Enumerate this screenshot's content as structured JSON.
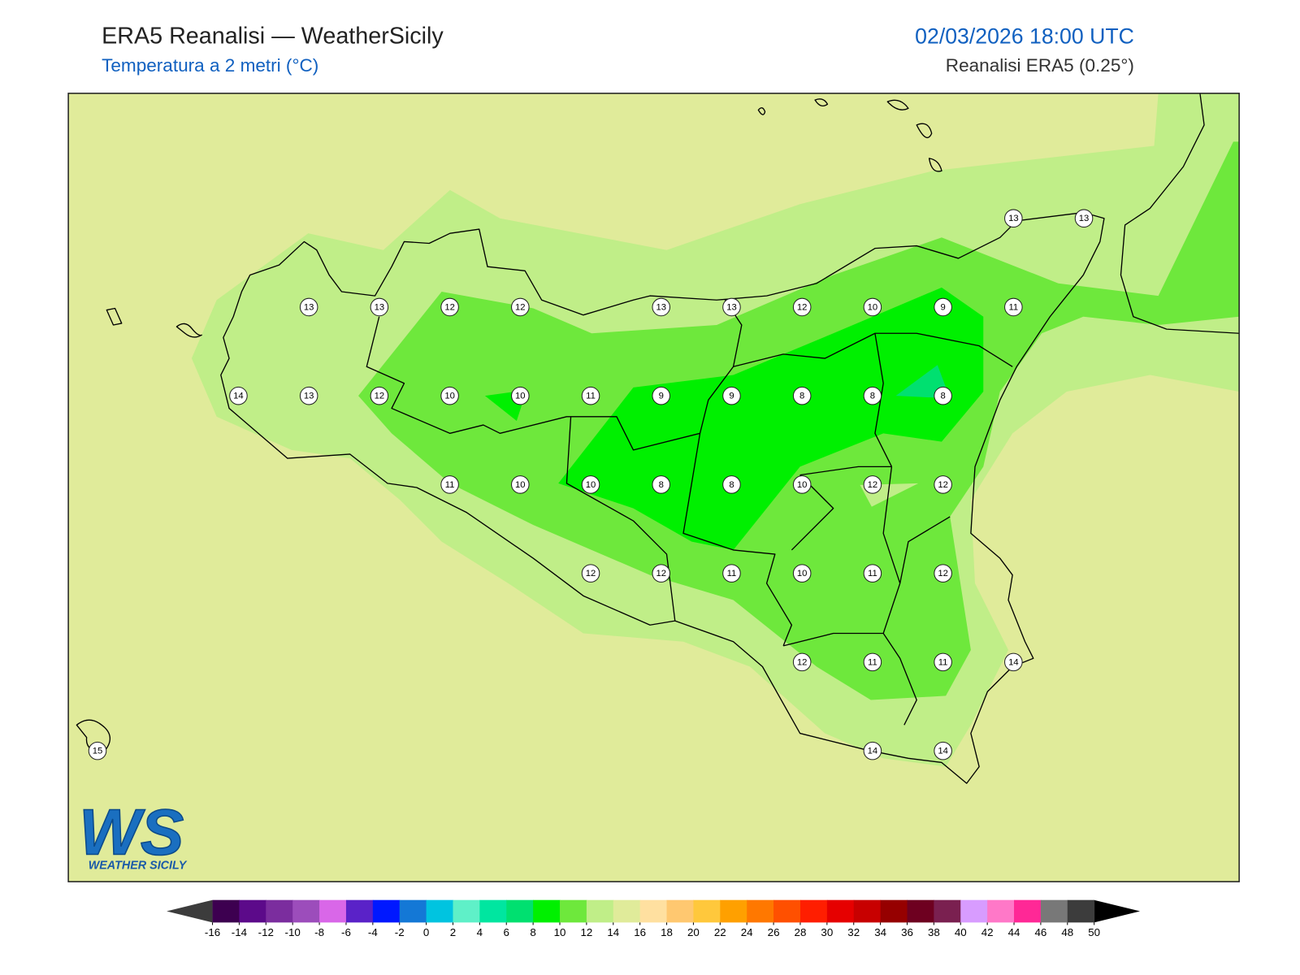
{
  "header": {
    "title": "ERA5 Reanalisi — WeatherSicily",
    "subtitle": "Temperatura a 2 metri (°C)",
    "datetime": "02/03/2026 18:00 UTC",
    "source": "Reanalisi ERA5 (0.25°)"
  },
  "grid": {
    "rows": [
      [
        null,
        null,
        null,
        null,
        null,
        null,
        null,
        null,
        null,
        null,
        null,
        null,
        null,
        13,
        13
      ],
      [
        null,
        null,
        null,
        13,
        13,
        12,
        12,
        null,
        13,
        13,
        12,
        10,
        9,
        11,
        null
      ],
      [
        null,
        null,
        14,
        13,
        12,
        10,
        10,
        11,
        9,
        9,
        8,
        8,
        8,
        null,
        null
      ],
      [
        null,
        null,
        null,
        null,
        null,
        11,
        10,
        10,
        8,
        8,
        10,
        12,
        12,
        null,
        null
      ],
      [
        null,
        null,
        null,
        null,
        null,
        null,
        null,
        12,
        12,
        11,
        10,
        11,
        12,
        null,
        null
      ],
      [
        null,
        null,
        null,
        null,
        null,
        null,
        null,
        null,
        null,
        null,
        12,
        11,
        11,
        14,
        null
      ],
      [
        15,
        null,
        null,
        null,
        null,
        null,
        null,
        null,
        null,
        null,
        null,
        14,
        14,
        null,
        null
      ]
    ]
  },
  "colorbar": {
    "ticks": [
      -16,
      -14,
      -12,
      -10,
      -8,
      -6,
      -4,
      -2,
      0,
      2,
      4,
      6,
      8,
      10,
      12,
      14,
      16,
      18,
      20,
      22,
      24,
      26,
      28,
      30,
      32,
      34,
      36,
      38,
      40,
      42,
      44,
      46,
      48,
      50
    ],
    "colors": [
      "#3d0050",
      "#5c0a8a",
      "#7b2d9e",
      "#9c4dbb",
      "#d967e8",
      "#5a22c8",
      "#0018ff",
      "#1478d6",
      "#00c4e0",
      "#5ff0c8",
      "#00e6a0",
      "#00e070",
      "#00f000",
      "#6ee83c",
      "#c0ee88",
      "#e0eb9a",
      "#ffe0a0",
      "#ffc870",
      "#ffc83c",
      "#ffa000",
      "#ff7800",
      "#ff5000",
      "#ff1e00",
      "#e60000",
      "#c80000",
      "#960000",
      "#6e0020",
      "#7a2050",
      "#d89cff",
      "#ff78c8",
      "#ff2896",
      "#787878",
      "#3c3c3c"
    ],
    "under_color": "#3c3c3c",
    "over_color": "#000000"
  },
  "logo": {
    "mark": "WS",
    "name": "WEATHER SICILY"
  }
}
